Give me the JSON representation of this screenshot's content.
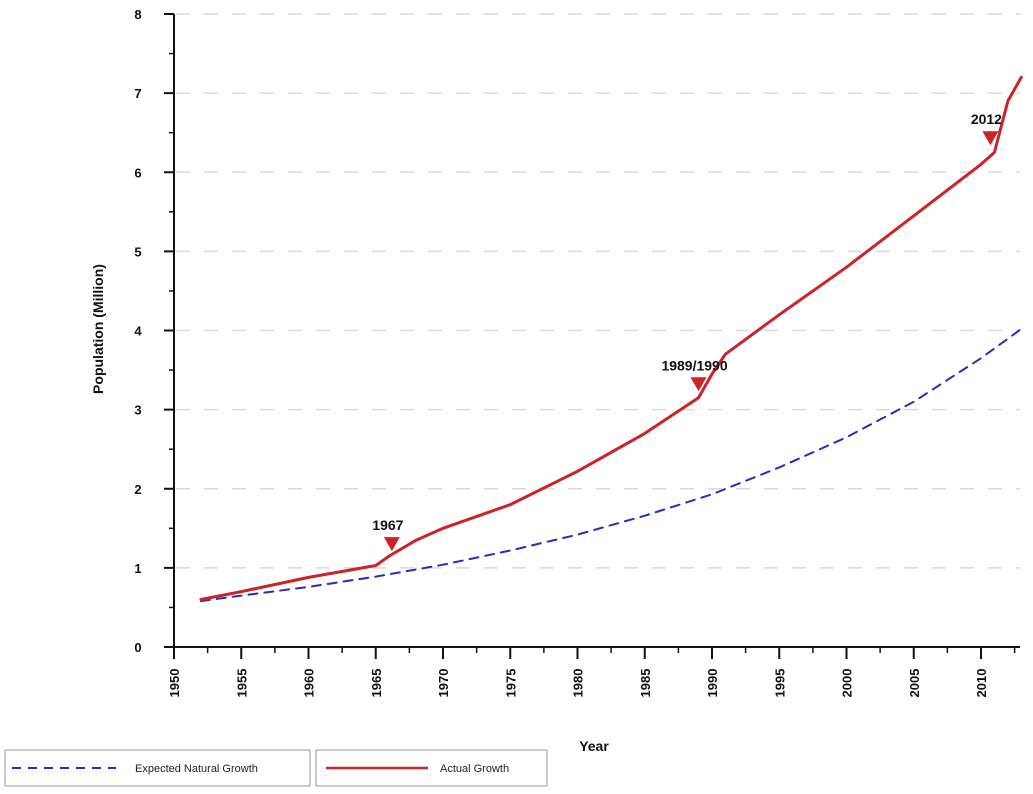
{
  "chart_data": {
    "type": "line",
    "xlabel": "Year",
    "ylabel": "Population (Million)",
    "xlim": [
      1950,
      2013
    ],
    "ylim": [
      0,
      8
    ],
    "x_ticks": [
      1950,
      1955,
      1960,
      1965,
      1970,
      1975,
      1980,
      1985,
      1990,
      1995,
      2000,
      2005,
      2010
    ],
    "x_tick_labels": [
      "1950",
      "1955",
      "1960",
      "1965",
      "1970",
      "1975",
      "1980",
      "1985",
      "1990",
      "1995",
      "2000",
      "2005",
      "2010"
    ],
    "y_ticks": [
      0,
      1,
      2,
      3,
      4,
      5,
      6,
      7,
      8
    ],
    "y_tick_labels": [
      "0",
      "1",
      "2",
      "3",
      "4",
      "5",
      "6",
      "7",
      "8"
    ],
    "grid": "horizontal dashed",
    "legend_position": "bottom-left",
    "series": [
      {
        "name": "Expected Natural Growth",
        "color": "#2b2bbf",
        "style": "dashed",
        "x": [
          1952,
          1955,
          1960,
          1965,
          1970,
          1975,
          1980,
          1985,
          1990,
          1995,
          2000,
          2005,
          2010,
          2013
        ],
        "y": [
          0.58,
          0.65,
          0.76,
          0.89,
          1.04,
          1.22,
          1.42,
          1.66,
          1.93,
          2.27,
          2.65,
          3.1,
          3.65,
          4.02
        ]
      },
      {
        "name": "Actual Growth",
        "color": "#cc2229",
        "style": "solid",
        "x": [
          1952,
          1955,
          1960,
          1965,
          1966,
          1968,
          1970,
          1975,
          1980,
          1985,
          1989,
          1990,
          1991,
          1995,
          2000,
          2005,
          2010,
          2011,
          2012,
          2013
        ],
        "y": [
          0.6,
          0.7,
          0.88,
          1.03,
          1.15,
          1.35,
          1.5,
          1.8,
          2.22,
          2.7,
          3.15,
          3.45,
          3.7,
          4.2,
          4.8,
          5.45,
          6.1,
          6.25,
          6.9,
          7.2
        ]
      }
    ],
    "annotations": [
      {
        "label": "1967",
        "x": 1966.2,
        "y": 1.3
      },
      {
        "label": "1989/1990",
        "x": 1989.0,
        "y": 3.32
      },
      {
        "label": "2012",
        "x": 2010.7,
        "y": 6.43
      }
    ],
    "marker_color": "#cc2229"
  }
}
